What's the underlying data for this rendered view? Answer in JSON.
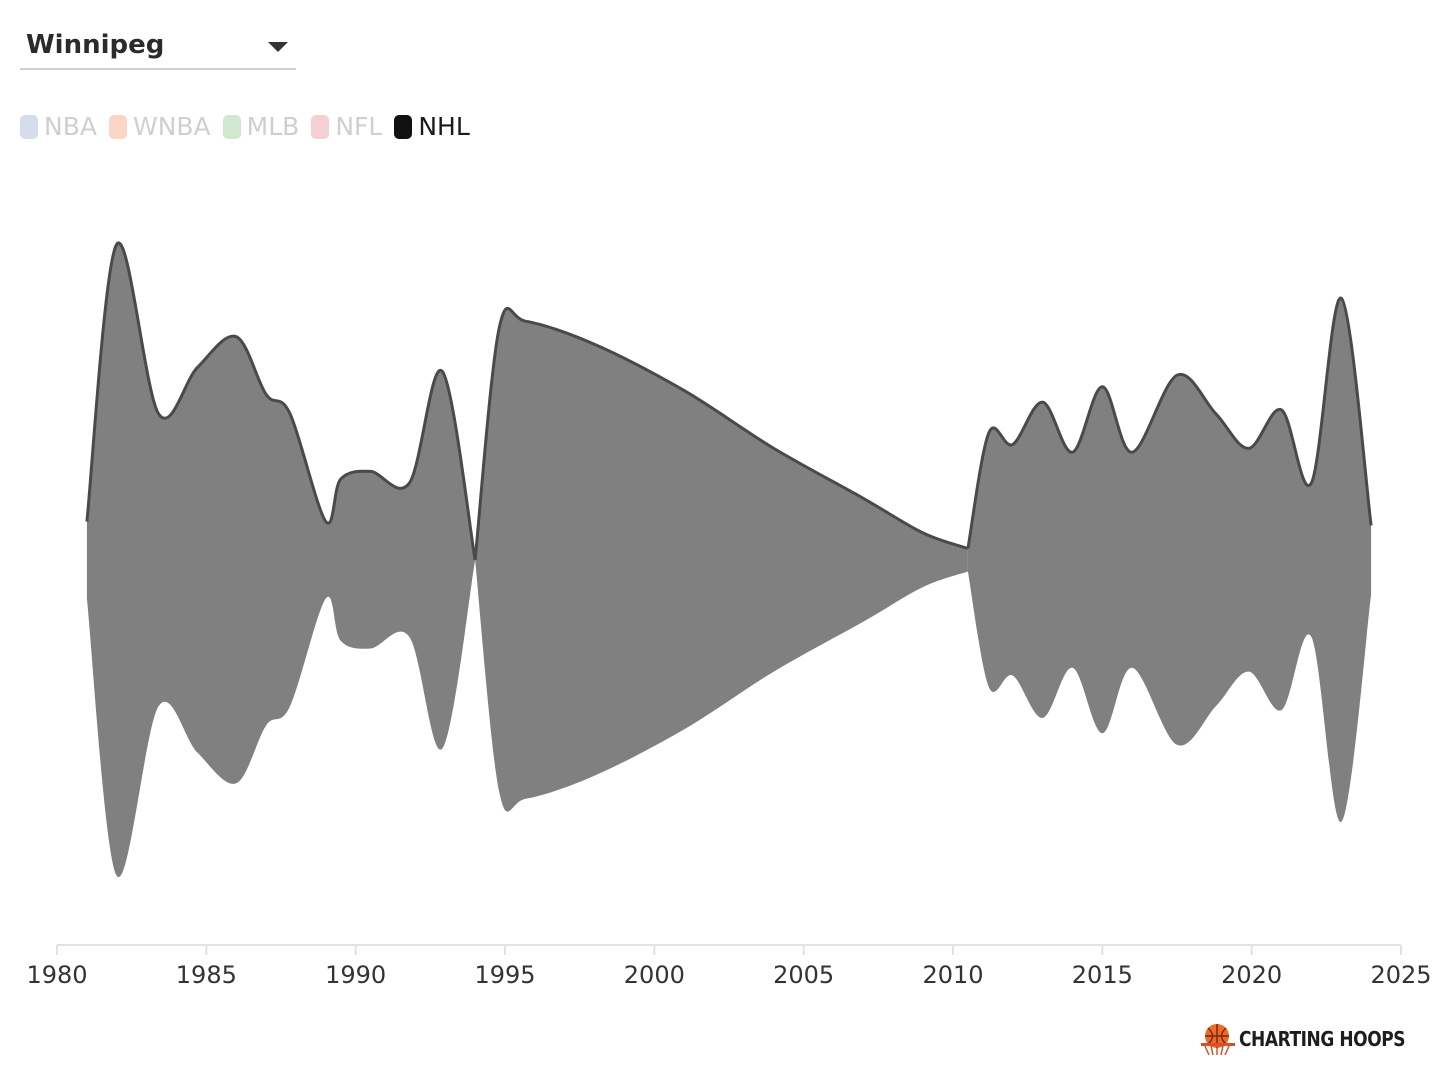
{
  "filter": {
    "selected_team": "Winnipeg"
  },
  "legend": [
    {
      "label": "NBA",
      "color": "#d6dceb",
      "active": false
    },
    {
      "label": "WNBA",
      "color": "#fbd5c6",
      "active": false
    },
    {
      "label": "MLB",
      "color": "#cfe8cf",
      "active": false
    },
    {
      "label": "NFL",
      "color": "#f6cfd2",
      "active": false
    },
    {
      "label": "NHL",
      "color": "#111111",
      "active": true
    }
  ],
  "brand": {
    "name": "CHARTING HOOPS"
  },
  "chart_data": {
    "type": "area",
    "xlim": [
      1980,
      2025
    ],
    "x_ticks": [
      "1980",
      "1985",
      "1990",
      "1995",
      "2000",
      "2005",
      "2010",
      "2015",
      "2020",
      "2025"
    ],
    "series": [
      {
        "league": "NHL",
        "segments": [
          {
            "x": [
              1981,
              1982,
              1983.4,
              1984.7,
              1986,
              1987,
              1987.8,
              1989,
              1989.5,
              1990.5,
              1991.8,
              1992.9,
              1994
            ],
            "values": [
              0.1,
              0.82,
              0.38,
              0.5,
              0.58,
              0.43,
              0.38,
              0.1,
              0.21,
              0.23,
              0.2,
              0.49,
              0.0
            ]
          },
          {
            "x": [
              1994,
              1994.8,
              1995.7,
              1998,
              2001,
              2004,
              2007,
              2009,
              2010.5
            ],
            "values": [
              0.0,
              0.6,
              0.62,
              0.56,
              0.44,
              0.29,
              0.16,
              0.07,
              0.03
            ]
          },
          {
            "x": [
              2010.5,
              2011.2,
              2012,
              2013,
              2014,
              2015,
              2016,
              2017.5,
              2018.8,
              2019.9,
              2021,
              2022,
              2023,
              2024
            ],
            "values": [
              0.03,
              0.33,
              0.3,
              0.41,
              0.28,
              0.45,
              0.28,
              0.48,
              0.38,
              0.29,
              0.39,
              0.2,
              0.68,
              0.09
            ]
          }
        ]
      }
    ]
  }
}
